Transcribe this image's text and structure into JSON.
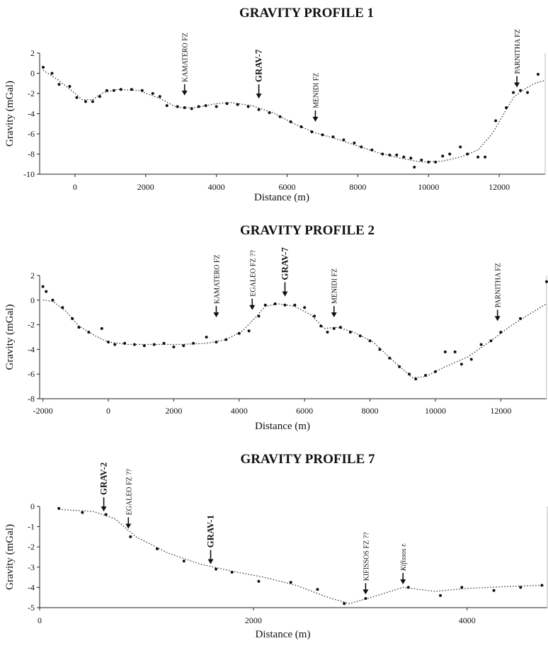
{
  "chart_data": [
    {
      "type": "scatter",
      "title": "GRAVITY PROFILE 1",
      "xlabel": "Distance (m)",
      "ylabel": "Gravity (mGal)",
      "xlim": [
        -1000,
        13300
      ],
      "ylim": [
        -10,
        2
      ],
      "xticks": [
        0,
        2000,
        4000,
        6000,
        8000,
        10000,
        12000
      ],
      "yticks": [
        2,
        0,
        -2,
        -4,
        -6,
        -8,
        -10
      ],
      "points": [
        {
          "x": -900,
          "y": 0.6
        },
        {
          "x": -650,
          "y": 0.0
        },
        {
          "x": -450,
          "y": -1.1
        },
        {
          "x": -150,
          "y": -1.3
        },
        {
          "x": 50,
          "y": -2.4
        },
        {
          "x": 300,
          "y": -2.8
        },
        {
          "x": 500,
          "y": -2.8
        },
        {
          "x": 700,
          "y": -2.3
        },
        {
          "x": 900,
          "y": -1.7
        },
        {
          "x": 1100,
          "y": -1.7
        },
        {
          "x": 1300,
          "y": -1.6
        },
        {
          "x": 1600,
          "y": -1.6
        },
        {
          "x": 1900,
          "y": -1.7
        },
        {
          "x": 2200,
          "y": -2.0
        },
        {
          "x": 2400,
          "y": -2.3
        },
        {
          "x": 2600,
          "y": -3.2
        },
        {
          "x": 2900,
          "y": -3.3
        },
        {
          "x": 3100,
          "y": -3.4
        },
        {
          "x": 3300,
          "y": -3.5
        },
        {
          "x": 3500,
          "y": -3.3
        },
        {
          "x": 3700,
          "y": -3.2
        },
        {
          "x": 4000,
          "y": -3.3
        },
        {
          "x": 4300,
          "y": -3.0
        },
        {
          "x": 4600,
          "y": -3.1
        },
        {
          "x": 4900,
          "y": -3.3
        },
        {
          "x": 5200,
          "y": -3.6
        },
        {
          "x": 5500,
          "y": -3.9
        },
        {
          "x": 5800,
          "y": -4.3
        },
        {
          "x": 6100,
          "y": -4.8
        },
        {
          "x": 6400,
          "y": -5.3
        },
        {
          "x": 6700,
          "y": -5.8
        },
        {
          "x": 7000,
          "y": -6.1
        },
        {
          "x": 7300,
          "y": -6.3
        },
        {
          "x": 7600,
          "y": -6.6
        },
        {
          "x": 7900,
          "y": -6.9
        },
        {
          "x": 8100,
          "y": -7.3
        },
        {
          "x": 8400,
          "y": -7.6
        },
        {
          "x": 8700,
          "y": -8.0
        },
        {
          "x": 8900,
          "y": -8.1
        },
        {
          "x": 9100,
          "y": -8.1
        },
        {
          "x": 9300,
          "y": -8.3
        },
        {
          "x": 9500,
          "y": -8.4
        },
        {
          "x": 9600,
          "y": -9.3
        },
        {
          "x": 9800,
          "y": -8.6
        },
        {
          "x": 10000,
          "y": -8.8
        },
        {
          "x": 10200,
          "y": -8.8
        },
        {
          "x": 10400,
          "y": -8.2
        },
        {
          "x": 10600,
          "y": -8.0
        },
        {
          "x": 10900,
          "y": -7.3
        },
        {
          "x": 11100,
          "y": -8.0
        },
        {
          "x": 11400,
          "y": -8.3
        },
        {
          "x": 11600,
          "y": -8.3
        },
        {
          "x": 11900,
          "y": -4.7
        },
        {
          "x": 12200,
          "y": -3.4
        },
        {
          "x": 12400,
          "y": -1.9
        },
        {
          "x": 12600,
          "y": -1.7
        },
        {
          "x": 12800,
          "y": -1.9
        },
        {
          "x": 13100,
          "y": -0.1
        }
      ],
      "curve": [
        [
          -900,
          0.3
        ],
        [
          -500,
          -0.6
        ],
        [
          -100,
          -1.7
        ],
        [
          200,
          -2.6
        ],
        [
          500,
          -2.6
        ],
        [
          800,
          -1.9
        ],
        [
          1200,
          -1.6
        ],
        [
          1800,
          -1.7
        ],
        [
          2400,
          -2.5
        ],
        [
          2900,
          -3.4
        ],
        [
          3400,
          -3.4
        ],
        [
          4000,
          -3.0
        ],
        [
          4400,
          -2.9
        ],
        [
          5000,
          -3.2
        ],
        [
          5600,
          -3.9
        ],
        [
          6200,
          -5.0
        ],
        [
          6800,
          -5.9
        ],
        [
          7400,
          -6.5
        ],
        [
          8000,
          -7.2
        ],
        [
          8600,
          -7.9
        ],
        [
          9200,
          -8.4
        ],
        [
          9800,
          -8.8
        ],
        [
          10400,
          -8.7
        ],
        [
          10900,
          -8.3
        ],
        [
          11400,
          -7.6
        ],
        [
          11800,
          -6.0
        ],
        [
          12100,
          -4.2
        ],
        [
          12400,
          -2.4
        ],
        [
          12700,
          -1.6
        ],
        [
          13000,
          -1.0
        ],
        [
          13300,
          -0.7
        ]
      ],
      "annotations": [
        {
          "label": "KAMATERO FZ",
          "x": 3100,
          "y": -2.2,
          "style": "small"
        },
        {
          "label": "GRAV-7",
          "x": 5200,
          "y": -2.5,
          "style": "big"
        },
        {
          "label": "MENIDI FZ",
          "x": 6800,
          "y": -4.8,
          "style": "small"
        },
        {
          "label": "PARNITHA FZ",
          "x": 12500,
          "y": -1.4,
          "style": "small"
        }
      ]
    },
    {
      "type": "scatter",
      "title": "GRAVITY PROFILE 2",
      "xlabel": "Distance (m)",
      "ylabel": "Gravity (mGal)",
      "xlim": [
        -2100,
        13400
      ],
      "ylim": [
        -8,
        2
      ],
      "xticks": [
        -2000,
        0,
        2000,
        4000,
        6000,
        8000,
        10000,
        12000
      ],
      "yticks": [
        2,
        0,
        -2,
        -4,
        -6,
        -8
      ],
      "points": [
        {
          "x": -2000,
          "y": 1.1
        },
        {
          "x": -1900,
          "y": 0.7
        },
        {
          "x": -1700,
          "y": 0.0
        },
        {
          "x": -1400,
          "y": -0.6
        },
        {
          "x": -1100,
          "y": -1.5
        },
        {
          "x": -900,
          "y": -2.2
        },
        {
          "x": -600,
          "y": -2.6
        },
        {
          "x": -200,
          "y": -2.3
        },
        {
          "x": 0,
          "y": -3.4
        },
        {
          "x": 200,
          "y": -3.6
        },
        {
          "x": 500,
          "y": -3.5
        },
        {
          "x": 800,
          "y": -3.6
        },
        {
          "x": 1100,
          "y": -3.7
        },
        {
          "x": 1400,
          "y": -3.6
        },
        {
          "x": 1700,
          "y": -3.5
        },
        {
          "x": 2000,
          "y": -3.8
        },
        {
          "x": 2300,
          "y": -3.7
        },
        {
          "x": 2600,
          "y": -3.5
        },
        {
          "x": 3000,
          "y": -3.0
        },
        {
          "x": 3300,
          "y": -3.4
        },
        {
          "x": 3600,
          "y": -3.2
        },
        {
          "x": 4000,
          "y": -2.7
        },
        {
          "x": 4300,
          "y": -2.5
        },
        {
          "x": 4600,
          "y": -1.3
        },
        {
          "x": 4800,
          "y": -0.4
        },
        {
          "x": 5100,
          "y": -0.3
        },
        {
          "x": 5400,
          "y": -0.4
        },
        {
          "x": 5700,
          "y": -0.4
        },
        {
          "x": 6000,
          "y": -0.6
        },
        {
          "x": 6300,
          "y": -1.3
        },
        {
          "x": 6500,
          "y": -2.1
        },
        {
          "x": 6700,
          "y": -2.6
        },
        {
          "x": 6900,
          "y": -2.3
        },
        {
          "x": 7100,
          "y": -2.2
        },
        {
          "x": 7400,
          "y": -2.6
        },
        {
          "x": 7700,
          "y": -2.9
        },
        {
          "x": 8000,
          "y": -3.3
        },
        {
          "x": 8300,
          "y": -4.0
        },
        {
          "x": 8600,
          "y": -4.7
        },
        {
          "x": 8900,
          "y": -5.4
        },
        {
          "x": 9200,
          "y": -6.0
        },
        {
          "x": 9400,
          "y": -6.4
        },
        {
          "x": 9700,
          "y": -6.1
        },
        {
          "x": 10000,
          "y": -5.8
        },
        {
          "x": 10300,
          "y": -4.2
        },
        {
          "x": 10600,
          "y": -4.2
        },
        {
          "x": 10800,
          "y": -5.2
        },
        {
          "x": 11100,
          "y": -4.8
        },
        {
          "x": 11400,
          "y": -3.6
        },
        {
          "x": 11700,
          "y": -3.3
        },
        {
          "x": 12000,
          "y": -2.6
        },
        {
          "x": 12600,
          "y": -1.5
        },
        {
          "x": 13400,
          "y": 1.5
        }
      ],
      "curve": [
        [
          -2000,
          0.0
        ],
        [
          -1700,
          -0.1
        ],
        [
          -1300,
          -0.9
        ],
        [
          -900,
          -2.1
        ],
        [
          -400,
          -2.9
        ],
        [
          0,
          -3.4
        ],
        [
          600,
          -3.6
        ],
        [
          1400,
          -3.6
        ],
        [
          2200,
          -3.6
        ],
        [
          3000,
          -3.5
        ],
        [
          3600,
          -3.2
        ],
        [
          4100,
          -2.5
        ],
        [
          4500,
          -1.4
        ],
        [
          4800,
          -0.5
        ],
        [
          5200,
          -0.3
        ],
        [
          5700,
          -0.5
        ],
        [
          6200,
          -1.2
        ],
        [
          6600,
          -2.3
        ],
        [
          7000,
          -2.2
        ],
        [
          7500,
          -2.6
        ],
        [
          8100,
          -3.4
        ],
        [
          8700,
          -4.9
        ],
        [
          9300,
          -6.3
        ],
        [
          9700,
          -6.2
        ],
        [
          10300,
          -5.4
        ],
        [
          11000,
          -4.6
        ],
        [
          11700,
          -3.3
        ],
        [
          12300,
          -2.1
        ],
        [
          12900,
          -1.1
        ],
        [
          13400,
          -0.3
        ]
      ],
      "annotations": [
        {
          "label": "KAMATERO FZ",
          "x": 3300,
          "y": -1.4,
          "style": "small"
        },
        {
          "label": "EGALEO FZ ??",
          "x": 4400,
          "y": -0.8,
          "style": "small"
        },
        {
          "label": "GRAV-7",
          "x": 5400,
          "y": 0.3,
          "style": "big"
        },
        {
          "label": "MENIDI FZ",
          "x": 6900,
          "y": -1.4,
          "style": "small"
        },
        {
          "label": "PARNITHA FZ",
          "x": 11900,
          "y": -1.7,
          "style": "small"
        }
      ]
    },
    {
      "type": "scatter",
      "title": "GRAVITY PROFILE 7",
      "xlabel": "Distance (m)",
      "ylabel": "Gravity (mGal)",
      "xlim": [
        0,
        4750
      ],
      "ylim": [
        -5,
        0
      ],
      "xticks": [
        0,
        2000,
        4000
      ],
      "yticks": [
        0,
        -1,
        -2,
        -3,
        -4,
        -5
      ],
      "points": [
        {
          "x": 180,
          "y": -0.1
        },
        {
          "x": 400,
          "y": -0.3
        },
        {
          "x": 620,
          "y": -0.4
        },
        {
          "x": 850,
          "y": -1.5
        },
        {
          "x": 1100,
          "y": -2.1
        },
        {
          "x": 1350,
          "y": -2.7
        },
        {
          "x": 1650,
          "y": -3.1
        },
        {
          "x": 1800,
          "y": -3.25
        },
        {
          "x": 2050,
          "y": -3.7
        },
        {
          "x": 2350,
          "y": -3.75
        },
        {
          "x": 2600,
          "y": -4.1
        },
        {
          "x": 2850,
          "y": -4.8
        },
        {
          "x": 3050,
          "y": -4.55
        },
        {
          "x": 3450,
          "y": -4.0
        },
        {
          "x": 3750,
          "y": -4.4
        },
        {
          "x": 3950,
          "y": -4.0
        },
        {
          "x": 4250,
          "y": -4.15
        },
        {
          "x": 4500,
          "y": -4.0
        },
        {
          "x": 4700,
          "y": -3.9
        }
      ],
      "curve": [
        [
          180,
          -0.15
        ],
        [
          500,
          -0.25
        ],
        [
          700,
          -0.6
        ],
        [
          900,
          -1.5
        ],
        [
          1200,
          -2.3
        ],
        [
          1500,
          -2.85
        ],
        [
          1800,
          -3.2
        ],
        [
          2100,
          -3.5
        ],
        [
          2400,
          -3.9
        ],
        [
          2700,
          -4.5
        ],
        [
          2900,
          -4.8
        ],
        [
          3100,
          -4.5
        ],
        [
          3400,
          -4.0
        ],
        [
          3700,
          -4.2
        ],
        [
          4000,
          -4.05
        ],
        [
          4400,
          -3.95
        ],
        [
          4700,
          -3.9
        ]
      ],
      "annotations": [
        {
          "label": "GRAV-2",
          "x": 600,
          "y": -0.25,
          "style": "big"
        },
        {
          "label": "EGALEO FZ ??",
          "x": 830,
          "y": -1.1,
          "style": "small"
        },
        {
          "label": "GRAV-1",
          "x": 1600,
          "y": -2.85,
          "style": "big"
        },
        {
          "label": "KIFISSOS FZ ??",
          "x": 3050,
          "y": -4.35,
          "style": "small"
        },
        {
          "label": "Kifissos r.",
          "x": 3400,
          "y": -3.85,
          "style": "italic"
        }
      ]
    }
  ]
}
